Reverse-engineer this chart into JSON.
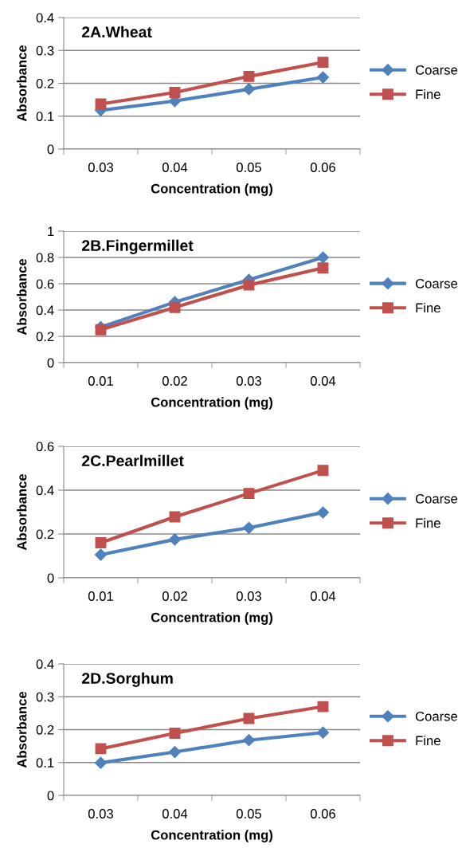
{
  "chart_data": [
    {
      "type": "line",
      "title": "2A.Wheat",
      "xlabel": "Concentration (mg)",
      "ylabel": "Absorbance",
      "categories": [
        "0.03",
        "0.04",
        "0.05",
        "0.06"
      ],
      "ylim": [
        0,
        0.4
      ],
      "yticks": [
        0,
        0.1,
        0.2,
        0.3,
        0.4
      ],
      "grid": "y",
      "legend": "right",
      "series": [
        {
          "name": "Coarse",
          "color": "#4f81bd",
          "marker": "diamond",
          "values": [
            0.118,
            0.146,
            0.182,
            0.218
          ]
        },
        {
          "name": "Fine",
          "color": "#c0504d",
          "marker": "square",
          "values": [
            0.137,
            0.172,
            0.221,
            0.264
          ]
        }
      ]
    },
    {
      "type": "line",
      "title": "2B.Fingermillet",
      "xlabel": "Concentration (mg)",
      "ylabel": "Absorbance",
      "categories": [
        "0.01",
        "0.02",
        "0.03",
        "0.04"
      ],
      "ylim": [
        0,
        1
      ],
      "yticks": [
        0,
        0.2,
        0.4,
        0.6,
        0.8,
        1
      ],
      "grid": "y",
      "legend": "right",
      "series": [
        {
          "name": "Coarse",
          "color": "#4f81bd",
          "marker": "diamond",
          "values": [
            0.27,
            0.46,
            0.63,
            0.8
          ]
        },
        {
          "name": "Fine",
          "color": "#c0504d",
          "marker": "square",
          "values": [
            0.25,
            0.42,
            0.59,
            0.72
          ]
        }
      ]
    },
    {
      "type": "line",
      "title": "2C.Pearlmillet",
      "xlabel": "Concentration (mg)",
      "ylabel": "Absorbance",
      "categories": [
        "0.01",
        "0.02",
        "0.03",
        "0.04"
      ],
      "ylim": [
        0,
        0.6
      ],
      "yticks": [
        0,
        0.2,
        0.4,
        0.6
      ],
      "grid": "y",
      "legend": "right",
      "series": [
        {
          "name": "Coarse",
          "color": "#4f81bd",
          "marker": "diamond",
          "values": [
            0.105,
            0.175,
            0.228,
            0.298
          ]
        },
        {
          "name": "Fine",
          "color": "#c0504d",
          "marker": "square",
          "values": [
            0.16,
            0.278,
            0.385,
            0.49
          ]
        }
      ]
    },
    {
      "type": "line",
      "title": "2D.Sorghum",
      "xlabel": "Concentration (mg)",
      "ylabel": "Absorbance",
      "categories": [
        "0.03",
        "0.04",
        "0.05",
        "0.06"
      ],
      "ylim": [
        0,
        0.4
      ],
      "yticks": [
        0,
        0.1,
        0.2,
        0.3,
        0.4
      ],
      "grid": "y",
      "legend": "right",
      "series": [
        {
          "name": "Coarse",
          "color": "#4f81bd",
          "marker": "diamond",
          "values": [
            0.099,
            0.132,
            0.168,
            0.191
          ]
        },
        {
          "name": "Fine",
          "color": "#c0504d",
          "marker": "square",
          "values": [
            0.142,
            0.189,
            0.234,
            0.27
          ]
        }
      ]
    }
  ]
}
